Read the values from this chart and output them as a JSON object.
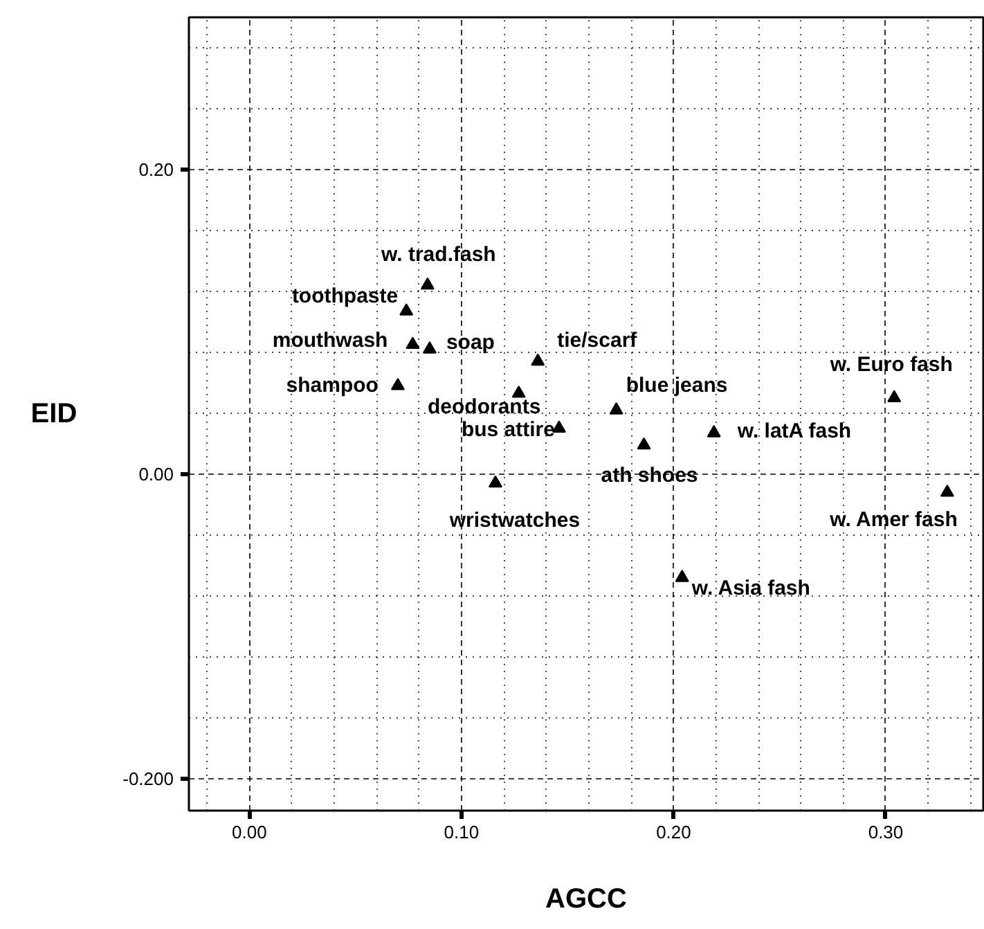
{
  "chart_data": {
    "type": "scatter",
    "xlabel": "AGCC",
    "ylabel": "EID",
    "xlim": [
      -0.0285,
      0.346
    ],
    "ylim": [
      -0.221,
      0.3
    ],
    "xticks": [
      {
        "value": 0,
        "label": "0.00"
      },
      {
        "value": 0.1,
        "label": "0.10"
      },
      {
        "value": 0.2,
        "label": "0.20"
      },
      {
        "value": 0.3,
        "label": "0.30"
      }
    ],
    "yticks": [
      {
        "value": -0.2,
        "label": "-0.200"
      },
      {
        "value": 0,
        "label": "0.00"
      },
      {
        "value": 0.2,
        "label": "0.20"
      }
    ],
    "grid": true,
    "marker": "triangle",
    "series": [
      {
        "name": "w. trad.fash",
        "color": "#000000",
        "x": [
          0.084
        ],
        "values": [
          0.124
        ]
      },
      {
        "name": "toothpaste",
        "color": "#000000",
        "x": [
          0.074
        ],
        "values": [
          0.107
        ]
      },
      {
        "name": "mouthwash",
        "color": "#000000",
        "x": [
          0.077
        ],
        "values": [
          0.085
        ]
      },
      {
        "name": "soap",
        "color": "#000000",
        "x": [
          0.085
        ],
        "values": [
          0.082
        ]
      },
      {
        "name": "shampoo",
        "color": "#000000",
        "x": [
          0.07
        ],
        "values": [
          0.058
        ]
      },
      {
        "name": "deodorants",
        "color": "#000000",
        "x": [
          0.127
        ],
        "values": [
          0.053
        ]
      },
      {
        "name": "tie/scarf",
        "color": "#000000",
        "x": [
          0.136
        ],
        "values": [
          0.074
        ]
      },
      {
        "name": "bus attire",
        "color": "#000000",
        "x": [
          0.146
        ],
        "values": [
          0.03
        ]
      },
      {
        "name": "blue jeans",
        "color": "#000000",
        "x": [
          0.173
        ],
        "values": [
          0.042
        ]
      },
      {
        "name": "ath shoes",
        "color": "#000000",
        "x": [
          0.186
        ],
        "values": [
          0.019
        ]
      },
      {
        "name": "w. latA fash",
        "color": "#000000",
        "x": [
          0.219
        ],
        "values": [
          0.027
        ]
      },
      {
        "name": "w. Euro fash",
        "color": "#000000",
        "x": [
          0.304
        ],
        "values": [
          0.05
        ]
      },
      {
        "name": "w. Amer fash",
        "color": "#000000",
        "x": [
          0.329
        ],
        "values": [
          -0.012
        ]
      },
      {
        "name": "wristwatches",
        "color": "#000000",
        "x": [
          0.116
        ],
        "values": [
          -0.006
        ]
      },
      {
        "name": "w. Asia fash",
        "color": "#000000",
        "x": [
          0.204
        ],
        "values": [
          -0.068
        ]
      }
    ]
  }
}
